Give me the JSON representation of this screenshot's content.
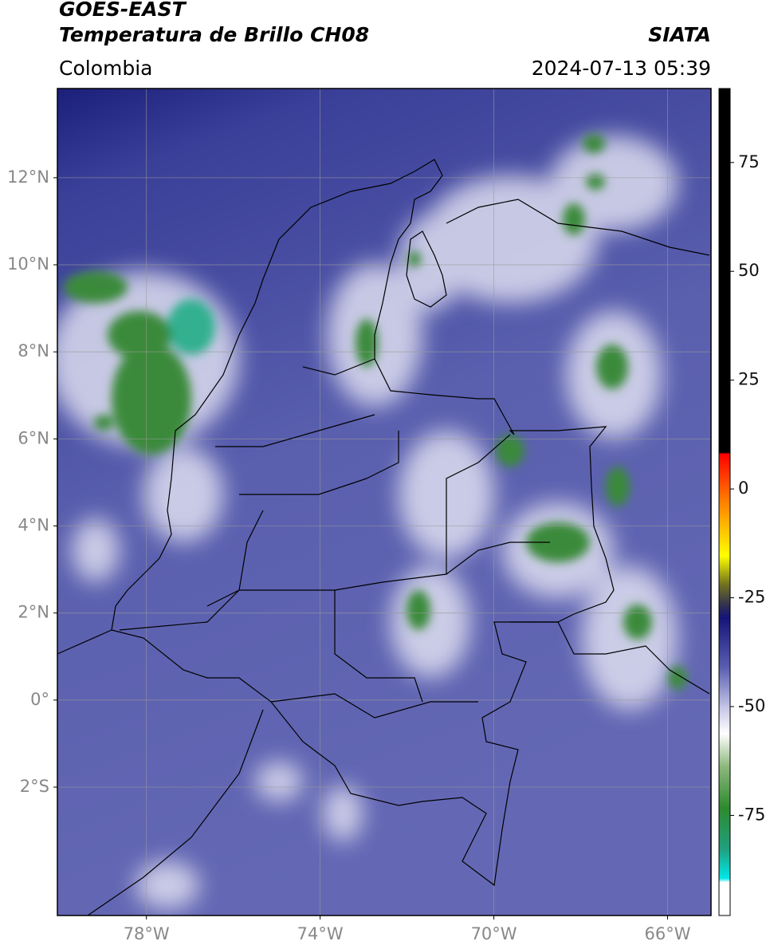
{
  "header": {
    "title": "GOES-EAST",
    "subtitle": "Temperatura de Brillo CH08",
    "source": "SIATA",
    "region": "Colombia",
    "datetime": "2024-07-13 05:39"
  },
  "chart_data": {
    "type": "map",
    "xlim": [
      -80.05,
      -65.0
    ],
    "ylim": [
      -4.95,
      14.05
    ],
    "xticks": [
      {
        "value": -78,
        "label": "78°W"
      },
      {
        "value": -74,
        "label": "74°W"
      },
      {
        "value": -70,
        "label": "70°W"
      },
      {
        "value": -66,
        "label": "66°W"
      }
    ],
    "yticks": [
      {
        "value": 12,
        "label": "12°N"
      },
      {
        "value": 10,
        "label": "10°N"
      },
      {
        "value": 8,
        "label": "8°N"
      },
      {
        "value": 6,
        "label": "6°N"
      },
      {
        "value": 4,
        "label": "4°N"
      },
      {
        "value": 2,
        "label": "2°N"
      },
      {
        "value": 0,
        "label": "0°"
      },
      {
        "value": -2,
        "label": "2°S"
      }
    ],
    "grid": true,
    "colorbar": {
      "lim": [
        -98,
        92
      ],
      "ticks": [
        75,
        50,
        25,
        0,
        -25,
        -50,
        -75
      ]
    }
  }
}
